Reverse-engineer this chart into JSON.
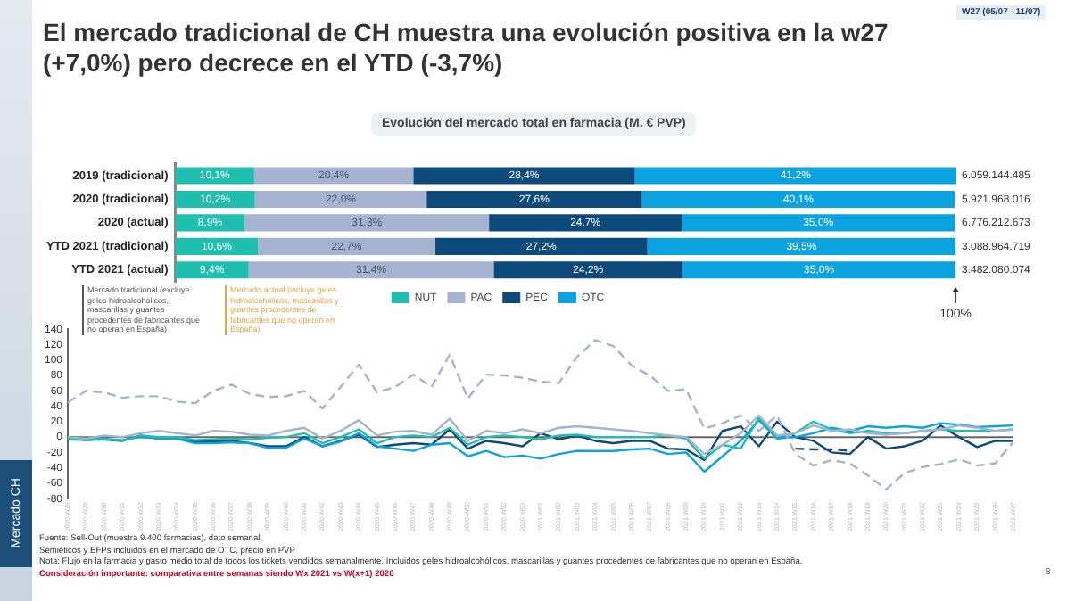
{
  "chart_data": [
    {
      "type": "bar",
      "orientation": "horizontal",
      "stacked": true,
      "title": "El mercado tradicional de CH muestra una evolución positiva en la w27 (+7,0%) pero decrece en el YTD (-3,7%)",
      "subtitle": "Evolución del mercado total en farmacia (M. € PVP)",
      "categories": [
        "2019 (tradicional)",
        "2020 (tradicional)",
        "2020 (actual)",
        "YTD 2021 (tradicional)",
        "YTD 2021 (actual)"
      ],
      "series": [
        {
          "name": "NUT",
          "color": "#1fbfb0",
          "values": [
            10.1,
            10.2,
            8.9,
            10.6,
            9.4
          ],
          "value_labels": [
            "10,1%",
            "10,2%",
            "8,9%",
            "10,6%",
            "9,4%"
          ]
        },
        {
          "name": "PAC",
          "color": "#a5b3d0",
          "values": [
            20.4,
            22.0,
            31.3,
            22.7,
            31.4
          ],
          "value_labels": [
            "20,4%",
            "22,0%",
            "31,3%",
            "22,7%",
            "31,4%"
          ]
        },
        {
          "name": "PEC",
          "color": "#0b4a7a",
          "values": [
            28.4,
            27.6,
            24.7,
            27.2,
            24.2
          ],
          "value_labels": [
            "28,4%",
            "27,6%",
            "24,7%",
            "27,2%",
            "24,2%"
          ]
        },
        {
          "name": "OTC",
          "color": "#0aa3e0",
          "values": [
            41.2,
            40.1,
            35.0,
            39.5,
            35.0
          ],
          "value_labels": [
            "41,2%",
            "40,1%",
            "35,0%",
            "39,5%",
            "35,0%"
          ]
        }
      ],
      "xlim": [
        0,
        100.1
      ],
      "tick_labels": "y",
      "legend": "bottom",
      "annotations": [
        "W27 (05/07 - 11/07)",
        {
          "text": "100%",
          "x": 100
        },
        "6.059.144.485",
        "5.921.968.016",
        "6.776.212.673",
        "3.088.964.719",
        "3.482.080.074",
        "Mercado tradicional (excluye geles hidroalcohólicos, mascarillas y guantes procedentes de fabricantes que no operan en España)",
        "Mercado actual (incluye geles hidroalcohólicos, mascarillas y guantes procedentes de fabricantes que no operan en España)"
      ]
    },
    {
      "type": "line",
      "categories": [
        "2020 W28",
        "2020 W29",
        "2020 W30",
        "2020 W31",
        "2020 W32",
        "2020 W33",
        "2020 W34",
        "2020 W35",
        "2020 W36",
        "2020 W37",
        "2020 W38",
        "2020 W39",
        "2020 W40",
        "2020 W41",
        "2020 W42",
        "2020 W43",
        "2020 W44",
        "2020 W45",
        "2020 W46",
        "2020 W47",
        "2020 W48",
        "2020 W49",
        "2020 W50",
        "2020 W51",
        "2020 W52",
        "2020 W53",
        "2021 W01",
        "2021 W02",
        "2021 W03",
        "2021 W04",
        "2021 W05",
        "2021 W06",
        "2021 W07",
        "2021 W08",
        "2021 W09",
        "2021 W10",
        "2021 W11",
        "2021 W12",
        "2021 W13",
        "2021 W14",
        "2021 W15",
        "2021 W16",
        "2021 W17",
        "2021 W18",
        "2021 W19",
        "2021 W20",
        "2021 W21",
        "2021 W22",
        "2021 W23",
        "2021 W24",
        "2021 W25",
        "2021 W26",
        "2021 W27"
      ],
      "ylim": [
        -80,
        140
      ],
      "yticks": [
        -80,
        -60,
        -40,
        -20,
        0,
        20,
        40,
        60,
        80,
        100,
        120,
        140
      ],
      "legend": false,
      "ref_lines": [
        {
          "axis": "y",
          "value": 0,
          "color": "#666666"
        }
      ],
      "series": [
        {
          "color": "#a5b3d0",
          "line_style": "dashed",
          "values": [
            45,
            60,
            58,
            51,
            53,
            53,
            46,
            44,
            60,
            68,
            56,
            52,
            53,
            60,
            37,
            65,
            94,
            58,
            65,
            81,
            65,
            107,
            50,
            81,
            80,
            77,
            72,
            70,
            104,
            126,
            118,
            93,
            80,
            60,
            62,
            11,
            18,
            28,
            8,
            28,
            -22,
            -37,
            -30,
            -34,
            -50,
            -68,
            -47,
            -39,
            -35,
            -29,
            -37,
            -34,
            -6
          ]
        },
        {
          "color": "#a5b3d0",
          "line_style": "solid",
          "values": [
            0,
            -2,
            2,
            0,
            5,
            8,
            5,
            2,
            8,
            7,
            3,
            2,
            8,
            12,
            -2,
            8,
            22,
            2,
            7,
            8,
            3,
            24,
            -5,
            8,
            5,
            10,
            5,
            12,
            14,
            12,
            10,
            8,
            5,
            2,
            0,
            -22,
            -10,
            5,
            28,
            2,
            5,
            15,
            8,
            10,
            5,
            3,
            5,
            8,
            10,
            15,
            12,
            8,
            10
          ]
        },
        {
          "color": "#1fbfb0",
          "line_style": "solid",
          "values": [
            -3,
            -4,
            -2,
            -5,
            2,
            0,
            0,
            -4,
            -3,
            -2,
            -3,
            -1,
            0,
            5,
            -8,
            0,
            10,
            -8,
            0,
            2,
            0,
            12,
            -10,
            0,
            2,
            0,
            -3,
            2,
            3,
            0,
            0,
            0,
            0,
            2,
            -2,
            -28,
            -10,
            -15,
            25,
            0,
            5,
            20,
            10,
            5,
            8,
            5,
            5,
            8,
            10,
            8,
            8,
            8,
            10
          ]
        },
        {
          "color": "#0aa3e0",
          "line_style": "solid",
          "values": [
            -2,
            -4,
            -3,
            -4,
            0,
            -2,
            -2,
            -8,
            -8,
            -7,
            -8,
            -14,
            -14,
            -2,
            -12,
            -6,
            5,
            -12,
            -15,
            -18,
            -10,
            -8,
            -25,
            -18,
            -26,
            -24,
            -28,
            -22,
            -18,
            -18,
            -18,
            -16,
            -15,
            -22,
            -20,
            -45,
            -25,
            -5,
            22,
            -2,
            0,
            5,
            12,
            8,
            14,
            12,
            14,
            12,
            18,
            16,
            13,
            14,
            15
          ]
        },
        {
          "color": "#0b4a7a",
          "line_style": "solid",
          "values": [
            0,
            -3,
            -3,
            -5,
            2,
            -2,
            -2,
            -6,
            -6,
            -5,
            -8,
            -12,
            -12,
            0,
            -12,
            -5,
            3,
            -13,
            -10,
            -8,
            -10,
            10,
            -15,
            -5,
            -8,
            -12,
            5,
            -3,
            2,
            -5,
            -8,
            -5,
            -5,
            -15,
            -16,
            -30,
            8,
            14,
            -12,
            20,
            0,
            -5,
            -20,
            -22,
            0,
            -15,
            -12,
            -5,
            15,
            0,
            -13,
            -5,
            -5
          ]
        },
        {
          "color": "#2d4a6b",
          "line_style": "dashed",
          "values": [
            null,
            null,
            null,
            null,
            null,
            null,
            null,
            null,
            null,
            null,
            null,
            null,
            null,
            null,
            null,
            null,
            null,
            null,
            null,
            null,
            null,
            null,
            null,
            null,
            null,
            null,
            null,
            null,
            null,
            null,
            null,
            null,
            null,
            null,
            null,
            null,
            null,
            null,
            null,
            null,
            -15,
            -16,
            -16,
            -18,
            null,
            null,
            null,
            null,
            null,
            null,
            null,
            null,
            null
          ]
        }
      ],
      "annotations": [
        "Fuente: Sell-Out (muestra 9.400 farmacias), dato semanal.",
        "Semiéticos y EFPs incluidos en el mercado de OTC, precio en PVP",
        "Nota: Flujo en la farmacia y gasto medio total de todos los tickets vendidos semanalmente. Incluidos geles hidroalcohólicos, mascarillas y guantes procedentes de fabricantes que no operan en España.",
        "Consideración importante: comparativa entre semanas siendo Wx 2021 vs W(x+1) 2020",
        "Mercado CH",
        "8"
      ]
    }
  ]
}
